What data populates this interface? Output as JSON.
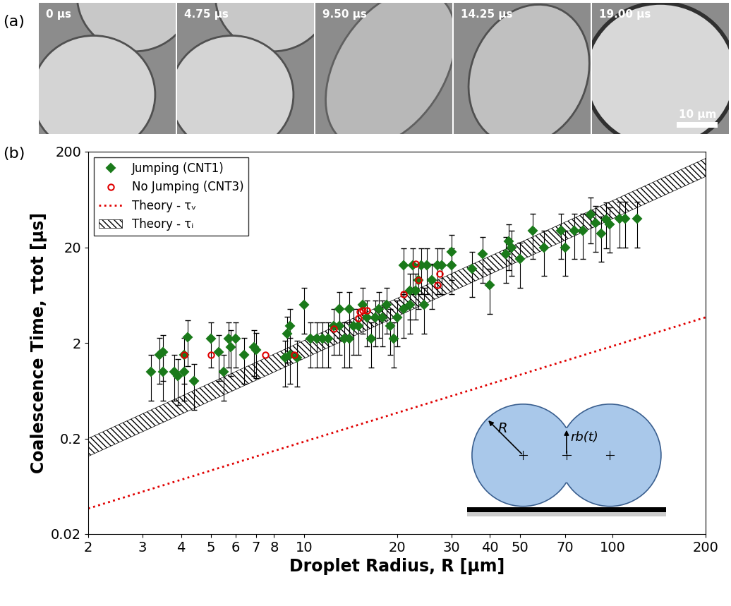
{
  "panel_a": {
    "label": "(a)",
    "frames": [
      "0 µs",
      "4.75 µs",
      "9.50 µs",
      "14.25 µs",
      "19.00 µs"
    ],
    "scale_bar": "10 µm"
  },
  "chart_data": {
    "type": "scatter",
    "panel_label": "(b)",
    "x_label": "Droplet Radius, R [µm]",
    "y_label": "Coalescence Time, τtot [µs]",
    "log": true,
    "grid": false,
    "legend": "upper left",
    "xlim": [
      2,
      200
    ],
    "ylim": [
      0.02,
      200
    ],
    "xticks": [
      2,
      3,
      4,
      5,
      6,
      7,
      8,
      10,
      20,
      30,
      40,
      50,
      70,
      100,
      200
    ],
    "yticks": [
      0.02,
      0.2,
      2,
      20,
      200
    ],
    "series": [
      {
        "name": "Jumping (CNT1)",
        "type": "scatter",
        "marker": "diamond",
        "color": "#1a7a1a",
        "x": [
          3.2,
          3.4,
          3.5,
          3.5,
          3.8,
          3.9,
          4.1,
          4.1,
          4.2,
          4.4,
          5.0,
          5.3,
          5.5,
          5.7,
          5.8,
          6.0,
          6.4,
          6.9,
          7.0,
          8.7,
          8.8,
          9.0,
          9.0,
          9.5,
          10.0,
          10.5,
          11.0,
          11.5,
          12.0,
          12.5,
          13.0,
          13.0,
          13.5,
          14.0,
          14.0,
          14.5,
          15.0,
          15.5,
          16.0,
          16.5,
          17.0,
          17.5,
          18.0,
          18.5,
          19.0,
          19.5,
          20.0,
          21.0,
          21.0,
          22.0,
          22.0,
          22.5,
          23.0,
          23.5,
          24.0,
          24.5,
          25.0,
          26.0,
          27.0,
          28.0,
          30,
          30,
          35,
          38,
          40,
          45,
          46,
          47,
          50,
          55,
          60,
          68,
          70,
          75,
          80,
          85,
          88,
          92,
          95,
          98,
          105,
          110,
          120
        ],
        "values": [
          1.0,
          1.5,
          1.6,
          1.0,
          1.0,
          0.9,
          1.0,
          1.5,
          2.3,
          0.8,
          2.2,
          1.6,
          1.0,
          2.2,
          1.8,
          2.2,
          1.5,
          1.8,
          1.7,
          1.4,
          2.5,
          3.0,
          1.5,
          1.4,
          5.0,
          2.2,
          2.2,
          2.2,
          2.2,
          3.0,
          3.0,
          4.5,
          2.2,
          2.2,
          4.5,
          3.0,
          3.0,
          5.0,
          3.7,
          2.2,
          3.7,
          4.5,
          3.7,
          5.0,
          3.0,
          2.2,
          3.7,
          4.5,
          13,
          7,
          5,
          13,
          7,
          9,
          13,
          5,
          13,
          9,
          13,
          13,
          13,
          18,
          12,
          17,
          8,
          17,
          23,
          20,
          15,
          30,
          20,
          30,
          20,
          30,
          30,
          44,
          36,
          28,
          39,
          35,
          40,
          40,
          40
        ],
        "error": [
          0.5,
          0.75,
          0.8,
          0.5,
          0.5,
          0.45,
          0.5,
          0.75,
          1.15,
          0.4,
          1.1,
          0.8,
          0.5,
          1.1,
          0.9,
          1.1,
          0.75,
          0.9,
          0.85,
          0.7,
          1.25,
          1.5,
          0.75,
          0.7,
          2.5,
          1.1,
          1.1,
          1.1,
          1.1,
          1.5,
          1.5,
          2.25,
          1.1,
          1.1,
          2.25,
          1.5,
          1.5,
          2.5,
          1.85,
          1.1,
          1.85,
          2.25,
          1.85,
          2.5,
          1.5,
          1.1,
          1.85,
          2.25,
          6.5,
          3.5,
          2.5,
          6.5,
          3.5,
          4.5,
          6.5,
          2.5,
          6.5,
          4.5,
          6.5,
          6.5,
          6.5,
          9,
          6,
          8.5,
          4,
          8.5,
          11.5,
          10,
          7.5,
          15,
          10,
          15,
          10,
          15,
          15,
          22,
          18,
          14,
          19.5,
          17.5,
          20,
          20,
          20
        ]
      },
      {
        "name": "No Jumping (CNT3)",
        "type": "scatter",
        "marker": "open_circle",
        "color": "#e00000",
        "x": [
          4.1,
          5.0,
          7.5,
          9.3,
          12.5,
          15.0,
          15.2,
          15.5,
          16.0,
          21.0,
          23.0,
          23.5,
          27.0,
          27.5
        ],
        "values": [
          1.5,
          1.5,
          1.5,
          1.5,
          2.8,
          3.6,
          4.2,
          4.4,
          4.4,
          6.5,
          13.5,
          9.0,
          8.0,
          10.5
        ]
      },
      {
        "name": "Theory - τᵥ",
        "type": "line",
        "line_style": "dotted",
        "color": "#e00000",
        "x": [
          2,
          200
        ],
        "values": [
          0.037,
          3.7
        ]
      },
      {
        "name": "Theory - τᵢ",
        "type": "area",
        "color": "#000000",
        "x": [
          2,
          200
        ],
        "lower": [
          0.13,
          110
        ],
        "upper": [
          0.2,
          170
        ]
      }
    ],
    "inset": {
      "radius_label": "R",
      "bridge_label": "rb(t)"
    }
  }
}
